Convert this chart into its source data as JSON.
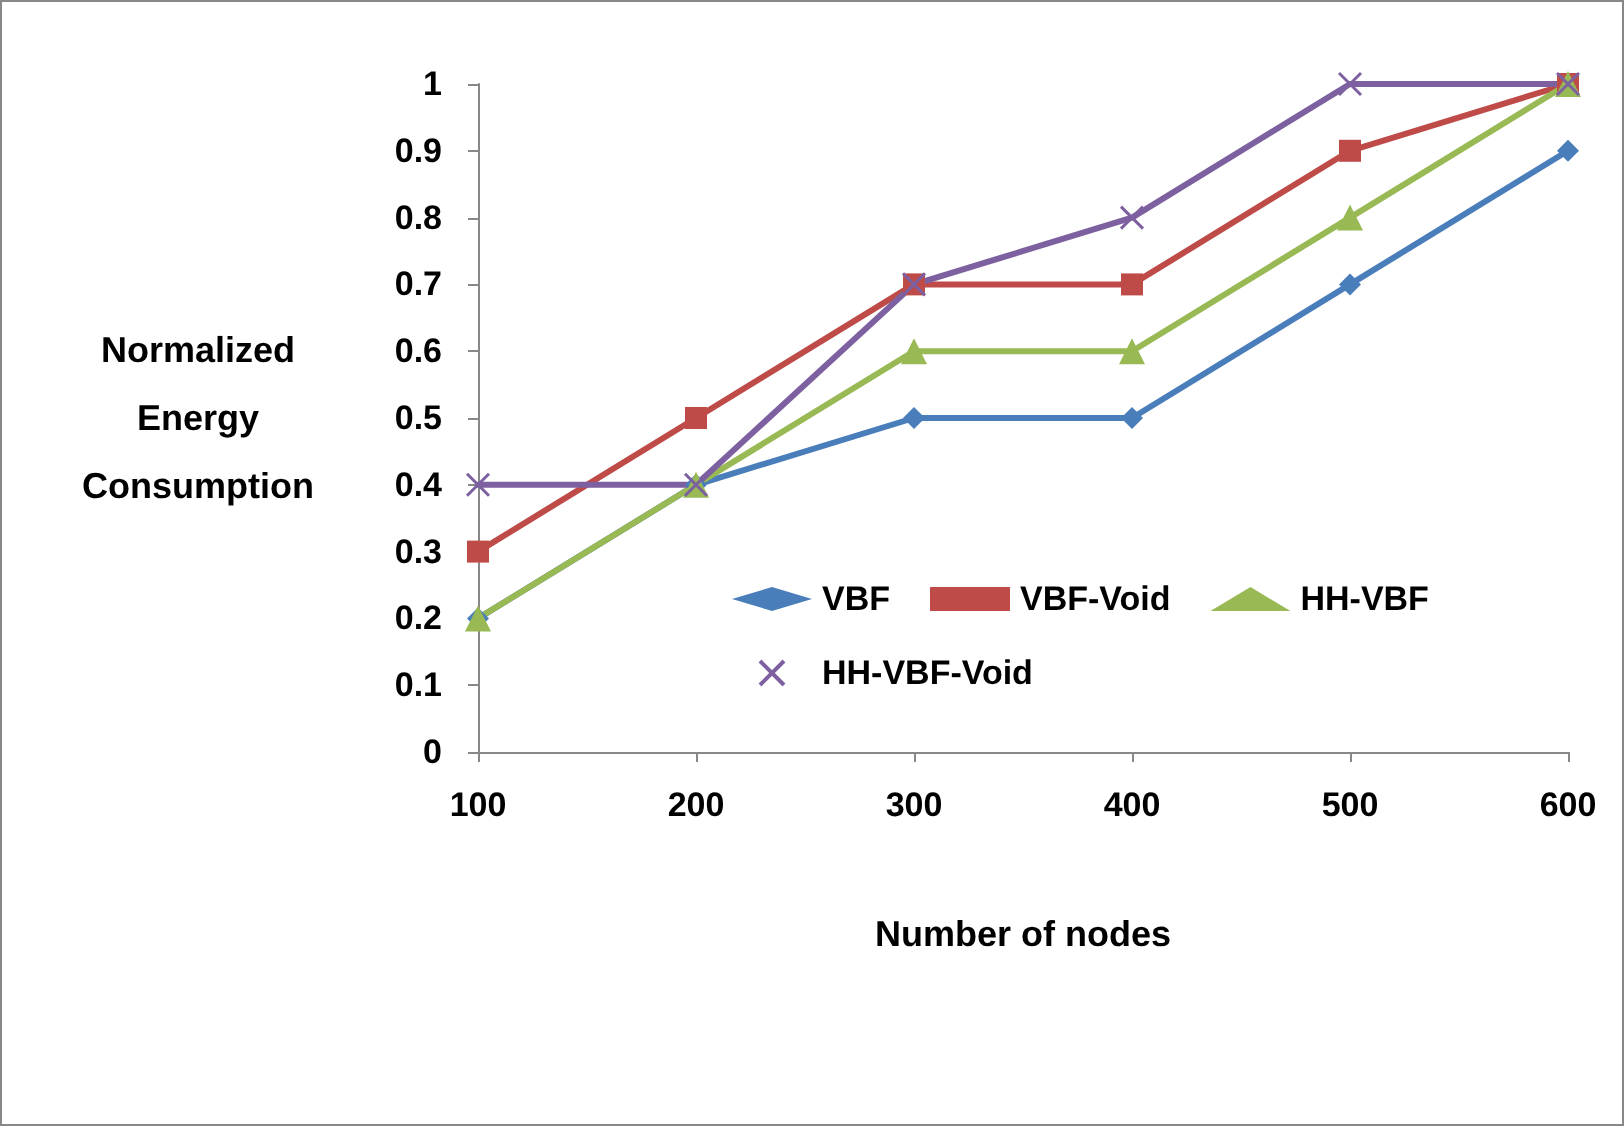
{
  "chart_data": {
    "type": "line",
    "xlabel": "Number of nodes",
    "ylabel": "Normalized\nEnergy\nConsumption",
    "categories": [
      "100",
      "200",
      "300",
      "400",
      "500",
      "600"
    ],
    "ylim": [
      0,
      1
    ],
    "yticks": [
      0,
      0.1,
      0.2,
      0.3,
      0.4,
      0.5,
      0.6,
      0.7,
      0.8,
      0.9,
      1
    ],
    "grid": false,
    "legend": "bottom right",
    "series": [
      {
        "name": "VBF",
        "color": "#4a7ebb",
        "marker": "diamond",
        "values": [
          0.2,
          0.4,
          0.5,
          0.5,
          0.7,
          0.9
        ]
      },
      {
        "name": "VBF-Void",
        "color": "#be4b48",
        "marker": "square",
        "values": [
          0.3,
          0.5,
          0.7,
          0.7,
          0.9,
          1
        ]
      },
      {
        "name": "HH-VBF",
        "color": "#98b954",
        "marker": "triangle",
        "values": [
          0.2,
          0.4,
          0.6,
          0.6,
          0.8,
          1
        ]
      },
      {
        "name": "HH-VBF-Void",
        "color": "#7d60a0",
        "marker": "cross",
        "values": [
          0.4,
          0.4,
          0.7,
          0.8,
          1,
          1
        ]
      }
    ]
  }
}
